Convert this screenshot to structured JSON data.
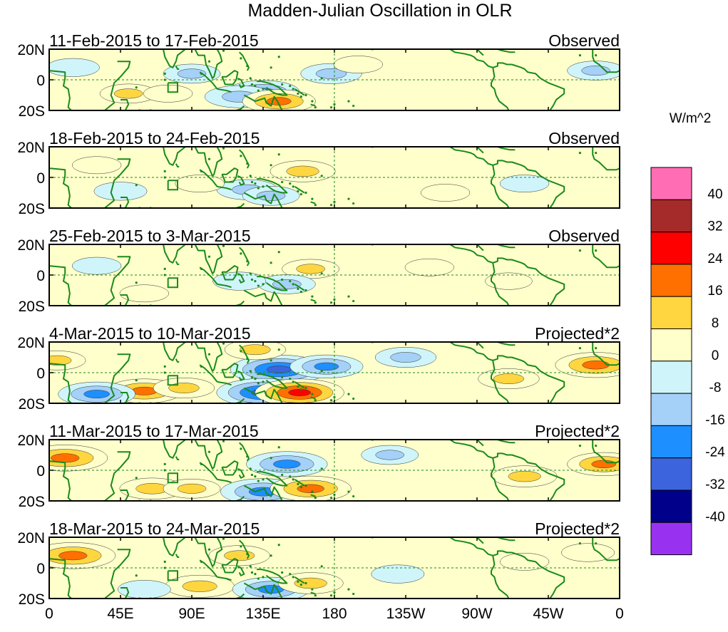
{
  "figure": {
    "title": "Madden-Julian Oscillation in OLR",
    "units": "W/m^2"
  },
  "chart_data": {
    "type": "heatmap",
    "title": "Madden-Julian Oscillation in OLR",
    "variable": "OLR anomaly",
    "units": "W/m^2",
    "x_tick_labels": [
      "0",
      "45E",
      "90E",
      "135E",
      "180",
      "135W",
      "90W",
      "45W",
      "0"
    ],
    "x_ticks_deg": [
      0,
      45,
      90,
      135,
      180,
      225,
      270,
      315,
      360
    ],
    "y_tick_labels": [
      "20N",
      "0",
      "20S"
    ],
    "y_ticks_deg": [
      20,
      0,
      -20
    ],
    "xlim": [
      0,
      360
    ],
    "ylim": [
      -20,
      20
    ],
    "colorbar": {
      "levels": [
        "40",
        "32",
        "24",
        "16",
        "8",
        "0",
        "-8",
        "-16",
        "-24",
        "-32",
        "-40"
      ],
      "colors": [
        "#ff6eb4",
        "#a52a2a",
        "#ff0000",
        "#ff7000",
        "#ffd640",
        "#ffffcc",
        "#cff5fb",
        "#a5d0f7",
        "#1e8fff",
        "#3c64dc",
        "#00008b",
        "#9932f0"
      ]
    },
    "panels": [
      {
        "dates": "11-Feb-2015 to 17-Feb-2015",
        "label": "Observed",
        "anomalies": [
          {
            "lon": 135,
            "lat": -8,
            "v": -18
          },
          {
            "lon": 120,
            "lat": -11,
            "v": -16
          },
          {
            "lon": 90,
            "lat": 4,
            "v": -10
          },
          {
            "lon": 178,
            "lat": 4,
            "v": -12
          },
          {
            "lon": 50,
            "lat": -9,
            "v": 10
          },
          {
            "lon": 75,
            "lat": -9,
            "v": 6
          },
          {
            "lon": 145,
            "lat": -14,
            "v": 18
          },
          {
            "lon": 195,
            "lat": 10,
            "v": 6
          },
          {
            "lon": 345,
            "lat": 6,
            "v": -10
          },
          {
            "lon": 15,
            "lat": 8,
            "v": -8
          }
        ]
      },
      {
        "dates": "18-Feb-2015 to 24-Feb-2015",
        "label": "Observed",
        "anomalies": [
          {
            "lon": 160,
            "lat": 4,
            "v": 14
          },
          {
            "lon": 125,
            "lat": -8,
            "v": -12
          },
          {
            "lon": 140,
            "lat": -12,
            "v": -10
          },
          {
            "lon": 45,
            "lat": -9,
            "v": -8
          },
          {
            "lon": 95,
            "lat": -4,
            "v": 6
          },
          {
            "lon": 30,
            "lat": 8,
            "v": 6
          },
          {
            "lon": 250,
            "lat": -10,
            "v": 6
          },
          {
            "lon": 300,
            "lat": -4,
            "v": -6
          }
        ]
      },
      {
        "dates": "25-Feb-2015 to 3-Mar-2015",
        "label": "Observed",
        "anomalies": [
          {
            "lon": 165,
            "lat": 4,
            "v": 10
          },
          {
            "lon": 150,
            "lat": -6,
            "v": -10
          },
          {
            "lon": 120,
            "lat": -4,
            "v": -8
          },
          {
            "lon": 240,
            "lat": 5,
            "v": 6
          },
          {
            "lon": 290,
            "lat": -4,
            "v": 5
          },
          {
            "lon": 60,
            "lat": -12,
            "v": 6
          },
          {
            "lon": 30,
            "lat": 6,
            "v": -6
          }
        ]
      },
      {
        "dates": "4-Mar-2015 to 10-Mar-2015",
        "label": "Projected*2",
        "anomalies": [
          {
            "lon": 145,
            "lat": 2,
            "v": -30
          },
          {
            "lon": 135,
            "lat": -13,
            "v": -28
          },
          {
            "lon": 175,
            "lat": 4,
            "v": -18
          },
          {
            "lon": 158,
            "lat": -13,
            "v": 26
          },
          {
            "lon": 60,
            "lat": -12,
            "v": 20
          },
          {
            "lon": 85,
            "lat": -10,
            "v": 12
          },
          {
            "lon": 30,
            "lat": -14,
            "v": -20
          },
          {
            "lon": 225,
            "lat": 10,
            "v": -12
          },
          {
            "lon": 290,
            "lat": -4,
            "v": 12
          },
          {
            "lon": 345,
            "lat": 5,
            "v": 22
          },
          {
            "lon": 5,
            "lat": 8,
            "v": 10
          },
          {
            "lon": 130,
            "lat": 15,
            "v": 12
          }
        ]
      },
      {
        "dates": "11-Mar-2015 to 17-Mar-2015",
        "label": "Projected*2",
        "anomalies": [
          {
            "lon": 150,
            "lat": 4,
            "v": -22
          },
          {
            "lon": 135,
            "lat": -14,
            "v": -24
          },
          {
            "lon": 165,
            "lat": -12,
            "v": 22
          },
          {
            "lon": 10,
            "lat": 8,
            "v": 24
          },
          {
            "lon": 65,
            "lat": -12,
            "v": 14
          },
          {
            "lon": 90,
            "lat": -12,
            "v": 10
          },
          {
            "lon": 300,
            "lat": -4,
            "v": 14
          },
          {
            "lon": 350,
            "lat": 4,
            "v": 18
          },
          {
            "lon": 215,
            "lat": 10,
            "v": -10
          }
        ]
      },
      {
        "dates": "18-Mar-2015 to 24-Mar-2015",
        "label": "Projected*2",
        "anomalies": [
          {
            "lon": 15,
            "lat": 8,
            "v": 24
          },
          {
            "lon": 120,
            "lat": 8,
            "v": 12
          },
          {
            "lon": 95,
            "lat": -12,
            "v": 16
          },
          {
            "lon": 140,
            "lat": -14,
            "v": -20
          },
          {
            "lon": 165,
            "lat": -10,
            "v": 14
          },
          {
            "lon": 220,
            "lat": -4,
            "v": -8
          },
          {
            "lon": 300,
            "lat": 4,
            "v": 6
          },
          {
            "lon": 340,
            "lat": 10,
            "v": 8
          },
          {
            "lon": 60,
            "lat": -14,
            "v": -8
          }
        ]
      }
    ]
  }
}
